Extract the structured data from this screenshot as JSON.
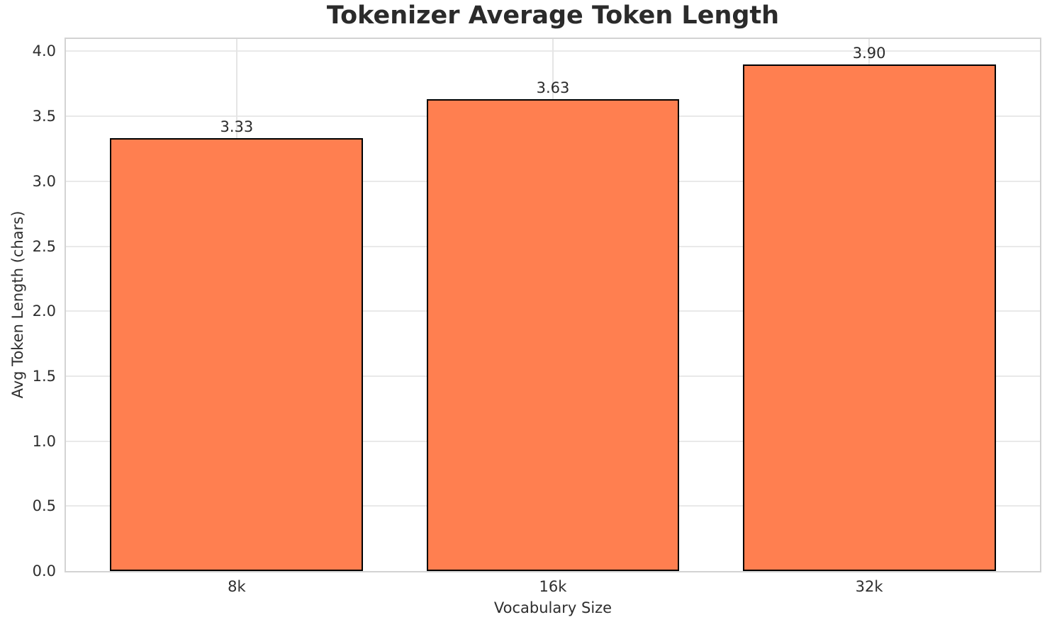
{
  "chart_data": {
    "type": "bar",
    "title": "Tokenizer Average Token Length",
    "xlabel": "Vocabulary Size",
    "ylabel": "Avg Token Length (chars)",
    "categories": [
      "8k",
      "16k",
      "32k"
    ],
    "values": [
      3.33,
      3.63,
      3.9
    ],
    "value_labels": [
      "3.33",
      "3.63",
      "3.90"
    ],
    "yticks": [
      0.0,
      0.5,
      1.0,
      1.5,
      2.0,
      2.5,
      3.0,
      3.5,
      4.0
    ],
    "ytick_labels": [
      "0.0",
      "0.5",
      "1.0",
      "1.5",
      "2.0",
      "2.5",
      "3.0",
      "3.5",
      "4.0"
    ],
    "ylim": [
      0,
      4.095
    ],
    "xlim": [
      -0.54,
      2.54
    ],
    "bar_width": 0.8,
    "grid": true,
    "legend": false,
    "colors": {
      "bar_fill": "#FF7F50",
      "bar_edge": "#000000",
      "grid": "#e8e8e8",
      "spine": "#d3d3d3",
      "text": "#262626"
    }
  }
}
